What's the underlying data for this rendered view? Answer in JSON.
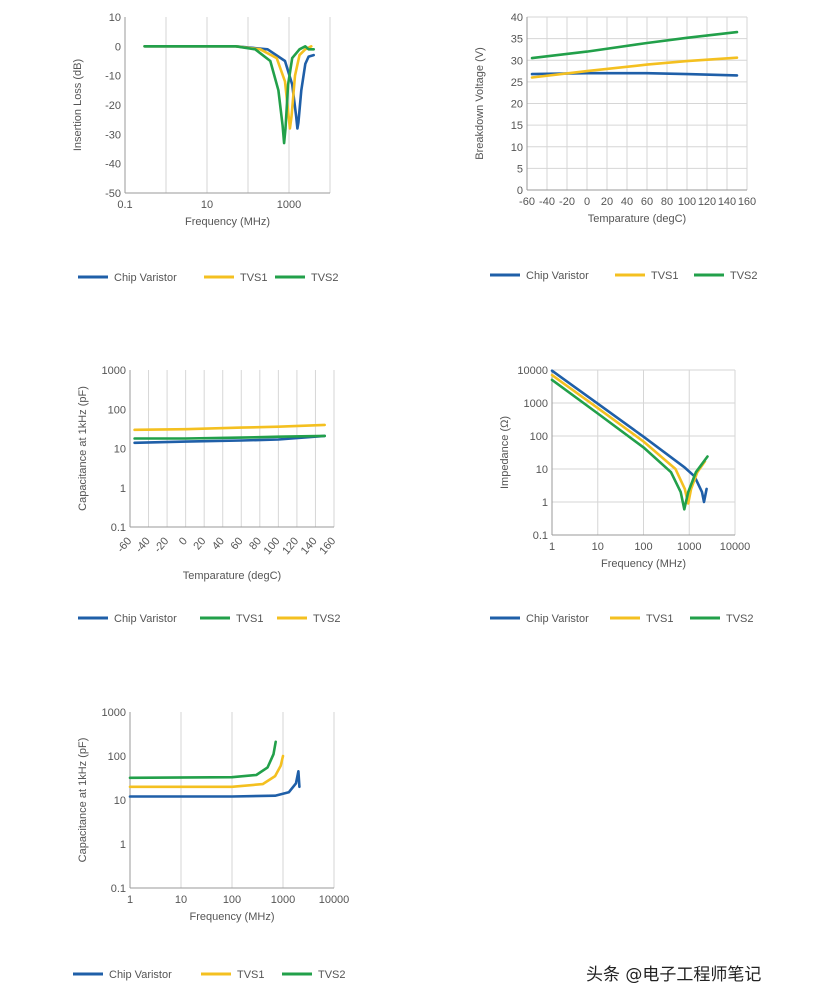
{
  "watermark": "头条 @电子工程师笔记",
  "colors": {
    "blue": "#1f5fa8",
    "yellow": "#f4c020",
    "green": "#22a04a",
    "grid": "#d6d6d6",
    "axis": "#9a9a9a",
    "text": "#555555"
  },
  "chart_data": [
    {
      "id": "insertion-loss",
      "type": "line",
      "xscale": "log",
      "xlim": [
        0.1,
        10000
      ],
      "ylim": [
        -50,
        10
      ],
      "xticks": [
        "0.1",
        "10",
        "1000"
      ],
      "xtick_values": [
        0.1,
        10,
        1000
      ],
      "yticks": [
        "10",
        "0",
        "-10",
        "-20",
        "-30",
        "-40",
        "-50"
      ],
      "ytick_values": [
        10,
        0,
        -10,
        -20,
        -30,
        -40,
        -50
      ],
      "grid": "vertical",
      "xlabel": "Frequency (MHz)",
      "ylabel": "Insertion Loss (dB)",
      "legend": [
        "Chip Varistor",
        "TVS1",
        "TVS2"
      ],
      "series": [
        {
          "name": "Chip Varistor",
          "color": "blue",
          "points": [
            [
              0.3,
              0
            ],
            [
              50,
              0
            ],
            [
              300,
              -1
            ],
            [
              800,
              -5
            ],
            [
              1200,
              -13
            ],
            [
              1500,
              -24
            ],
            [
              1600,
              -28
            ],
            [
              1700,
              -26
            ],
            [
              2000,
              -15
            ],
            [
              2500,
              -6
            ],
            [
              3000,
              -3.5
            ],
            [
              4000,
              -3
            ]
          ]
        },
        {
          "name": "TVS1",
          "color": "yellow",
          "points": [
            [
              0.3,
              0
            ],
            [
              50,
              0
            ],
            [
              200,
              -1
            ],
            [
              500,
              -4
            ],
            [
              800,
              -12
            ],
            [
              1000,
              -25
            ],
            [
              1050,
              -28
            ],
            [
              1150,
              -24
            ],
            [
              1400,
              -10
            ],
            [
              1800,
              -3
            ],
            [
              2500,
              -1
            ],
            [
              3500,
              0
            ]
          ]
        },
        {
          "name": "TVS2",
          "color": "green",
          "points": [
            [
              0.3,
              0
            ],
            [
              50,
              0
            ],
            [
              150,
              -1
            ],
            [
              350,
              -5
            ],
            [
              550,
              -15
            ],
            [
              700,
              -27
            ],
            [
              760,
              -33
            ],
            [
              820,
              -28
            ],
            [
              950,
              -13
            ],
            [
              1200,
              -4
            ],
            [
              1800,
              -1
            ],
            [
              2500,
              0
            ],
            [
              3000,
              -1
            ],
            [
              4000,
              -1
            ]
          ]
        }
      ]
    },
    {
      "id": "breakdown-voltage",
      "type": "line",
      "xscale": "linear",
      "xlim": [
        -60,
        160
      ],
      "ylim": [
        0,
        40
      ],
      "xticks": [
        "-60",
        "-40",
        "-20",
        "0",
        "20",
        "40",
        "60",
        "80",
        "100",
        "120",
        "140",
        "160"
      ],
      "xtick_values": [
        -60,
        -40,
        -20,
        0,
        20,
        40,
        60,
        80,
        100,
        120,
        140,
        160
      ],
      "yticks": [
        "40",
        "35",
        "30",
        "25",
        "20",
        "15",
        "10",
        "5",
        "0"
      ],
      "ytick_values": [
        40,
        35,
        30,
        25,
        20,
        15,
        10,
        5,
        0
      ],
      "grid": "both",
      "xlabel": "Temparature (degC)",
      "ylabel": "Breakdown Voltage (V)",
      "legend": [
        "Chip Varistor",
        "TVS1",
        "TVS2"
      ],
      "series": [
        {
          "name": "Chip Varistor",
          "color": "blue",
          "points": [
            [
              -55,
              26.8
            ],
            [
              0,
              27
            ],
            [
              60,
              27
            ],
            [
              100,
              26.8
            ],
            [
              150,
              26.5
            ]
          ]
        },
        {
          "name": "TVS1",
          "color": "yellow",
          "points": [
            [
              -55,
              26
            ],
            [
              0,
              27.5
            ],
            [
              60,
              29
            ],
            [
              100,
              29.8
            ],
            [
              150,
              30.6
            ]
          ]
        },
        {
          "name": "TVS2",
          "color": "green",
          "points": [
            [
              -55,
              30.5
            ],
            [
              0,
              32
            ],
            [
              60,
              34
            ],
            [
              100,
              35.2
            ],
            [
              150,
              36.5
            ]
          ]
        }
      ]
    },
    {
      "id": "capacitance-temperature",
      "type": "line",
      "xscale": "linear",
      "xlim": [
        -60,
        160
      ],
      "yscale": "log",
      "ylim": [
        0.1,
        1000
      ],
      "xticks": [
        "-60",
        "-40",
        "-20",
        "0",
        "20",
        "40",
        "60",
        "80",
        "100",
        "120",
        "140",
        "160"
      ],
      "xtick_values": [
        -60,
        -40,
        -20,
        0,
        20,
        40,
        60,
        80,
        100,
        120,
        140,
        160
      ],
      "yticks": [
        "1000",
        "100",
        "10",
        "1",
        "0.1"
      ],
      "ytick_values": [
        1000,
        100,
        10,
        1,
        0.1
      ],
      "grid": "vertical",
      "xlabel": "Temparature (degC)",
      "ylabel": "Capacitance at 1kHz (pF)",
      "legend": [
        "Chip Varistor",
        "TVS1",
        "TVS2"
      ],
      "series": [
        {
          "name": "Chip Varistor",
          "color": "blue",
          "points": [
            [
              -55,
              14
            ],
            [
              0,
              15
            ],
            [
              60,
              16
            ],
            [
              100,
              17
            ],
            [
              150,
              21
            ]
          ]
        },
        {
          "name": "TVS1",
          "color": "green",
          "points": [
            [
              -55,
              18
            ],
            [
              0,
              18
            ],
            [
              60,
              19
            ],
            [
              100,
              20
            ],
            [
              150,
              21
            ]
          ]
        },
        {
          "name": "TVS2",
          "color": "yellow",
          "points": [
            [
              -55,
              30
            ],
            [
              0,
              31
            ],
            [
              60,
              34
            ],
            [
              100,
              36
            ],
            [
              150,
              40
            ]
          ]
        }
      ]
    },
    {
      "id": "impedance",
      "type": "line",
      "xscale": "log",
      "xlim": [
        1,
        10000
      ],
      "yscale": "log",
      "ylim": [
        0.1,
        10000
      ],
      "xticks": [
        "1",
        "10",
        "100",
        "1000",
        "10000"
      ],
      "xtick_values": [
        1,
        10,
        100,
        1000,
        10000
      ],
      "yticks": [
        "10000",
        "1000",
        "100",
        "10",
        "1",
        "0.1"
      ],
      "ytick_values": [
        10000,
        1000,
        100,
        10,
        1,
        0.1
      ],
      "grid": "both",
      "xlabel": "Frequency (MHz)",
      "ylabel": "Impedance (Ω)",
      "legend": [
        "Chip Varistor",
        "TVS1",
        "TVS2"
      ],
      "series": [
        {
          "name": "Chip Varistor",
          "color": "blue",
          "points": [
            [
              1,
              9500
            ],
            [
              10,
              950
            ],
            [
              100,
              95
            ],
            [
              800,
              11
            ],
            [
              1300,
              6
            ],
            [
              1900,
              2
            ],
            [
              2100,
              1
            ],
            [
              2400,
              2.5
            ]
          ]
        },
        {
          "name": "TVS1",
          "color": "yellow",
          "points": [
            [
              1,
              7000
            ],
            [
              10,
              700
            ],
            [
              100,
              68
            ],
            [
              500,
              10
            ],
            [
              800,
              2.5
            ],
            [
              950,
              0.9
            ],
            [
              1100,
              2.5
            ],
            [
              1500,
              8
            ],
            [
              2200,
              17
            ]
          ]
        },
        {
          "name": "TVS2",
          "color": "green",
          "points": [
            [
              1,
              5000
            ],
            [
              10,
              480
            ],
            [
              100,
              45
            ],
            [
              400,
              8
            ],
            [
              650,
              2
            ],
            [
              780,
              0.6
            ],
            [
              950,
              2
            ],
            [
              1400,
              8
            ],
            [
              2500,
              24
            ]
          ]
        }
      ]
    },
    {
      "id": "capacitance-frequency",
      "type": "line",
      "xscale": "log",
      "xlim": [
        1,
        10000
      ],
      "yscale": "log",
      "ylim": [
        0.1,
        1000
      ],
      "xticks": [
        "1",
        "10",
        "100",
        "1000",
        "10000"
      ],
      "xtick_values": [
        1,
        10,
        100,
        1000,
        10000
      ],
      "yticks": [
        "1000",
        "100",
        "10",
        "1",
        "0.1"
      ],
      "ytick_values": [
        1000,
        100,
        10,
        1,
        0.1
      ],
      "grid": "vertical",
      "xlabel": "Frequency (MHz)",
      "ylabel": "Capacitance at 1kHz (pF)",
      "legend": [
        "Chip Varistor",
        "TVS1",
        "TVS2"
      ],
      "series": [
        {
          "name": "Chip Varistor",
          "color": "blue",
          "points": [
            [
              1,
              12
            ],
            [
              100,
              12
            ],
            [
              700,
              12.5
            ],
            [
              1300,
              15
            ],
            [
              1800,
              24
            ],
            [
              2000,
              45
            ],
            [
              2100,
              20
            ]
          ]
        },
        {
          "name": "TVS1",
          "color": "yellow",
          "points": [
            [
              1,
              20
            ],
            [
              100,
              20
            ],
            [
              400,
              23
            ],
            [
              700,
              35
            ],
            [
              900,
              60
            ],
            [
              1000,
              100
            ]
          ]
        },
        {
          "name": "TVS2",
          "color": "green",
          "points": [
            [
              1,
              32
            ],
            [
              100,
              33
            ],
            [
              300,
              37
            ],
            [
              500,
              55
            ],
            [
              650,
              110
            ],
            [
              720,
              210
            ]
          ]
        }
      ]
    }
  ]
}
